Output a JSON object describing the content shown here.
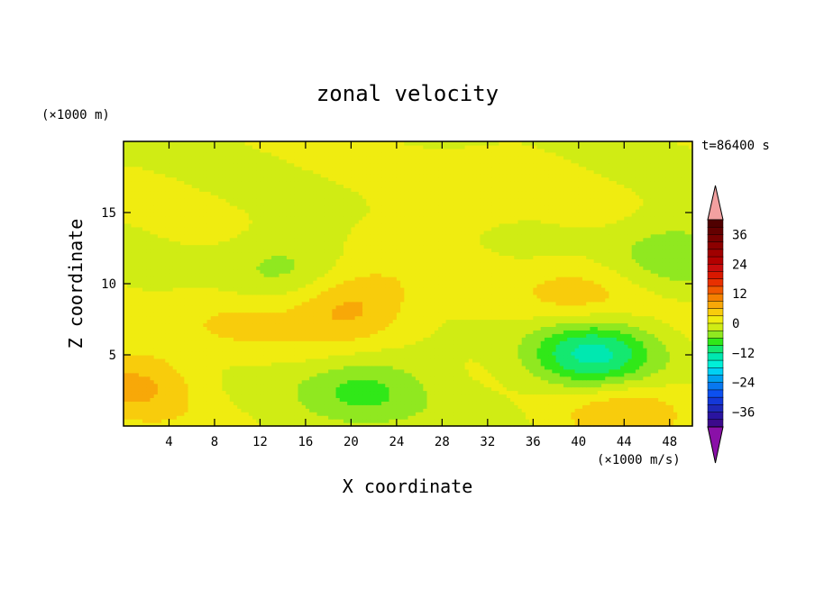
{
  "chart_data": {
    "type": "heatmap",
    "title": "zonal velocity",
    "xlabel": "X coordinate",
    "ylabel": "Z coordinate",
    "x_unit_label": "(×1000 m/s)",
    "y_unit_label": "(×1000 m)",
    "time_label": "t=86400 s",
    "xlim": [
      0,
      50
    ],
    "ylim": [
      0,
      20
    ],
    "x_ticks": [
      4,
      8,
      12,
      16,
      20,
      24,
      28,
      32,
      36,
      40,
      44,
      48
    ],
    "y_ticks": [
      5,
      10,
      15
    ],
    "colorbar": {
      "min": -42,
      "max": 42,
      "step": 3,
      "tick_values": [
        36,
        24,
        12,
        0,
        -12,
        -24,
        -36
      ],
      "tick_labels": [
        "36",
        "24",
        "12",
        "0",
        "−12",
        "−24",
        "−36"
      ],
      "extend": "both",
      "over_color": "#f2a0a0",
      "under_color": "#8a10a8"
    },
    "features": [
      {
        "x": 20,
        "z": 8.5,
        "value": 8
      },
      {
        "x": 41,
        "z": 5,
        "value": -13
      },
      {
        "x": 21,
        "z": 2.5,
        "value": -7
      },
      {
        "x": 1,
        "z": 3,
        "value": 6
      },
      {
        "x": 44,
        "z": 1,
        "value": 6
      },
      {
        "x": 30,
        "z": 16,
        "value": 3
      },
      {
        "x": 9,
        "z": 7,
        "value": 3
      },
      {
        "x": 14,
        "z": 11,
        "value": -4
      },
      {
        "x": 48,
        "z": 12,
        "value": -5
      },
      {
        "x": 40,
        "z": 9,
        "value": 5
      }
    ]
  }
}
